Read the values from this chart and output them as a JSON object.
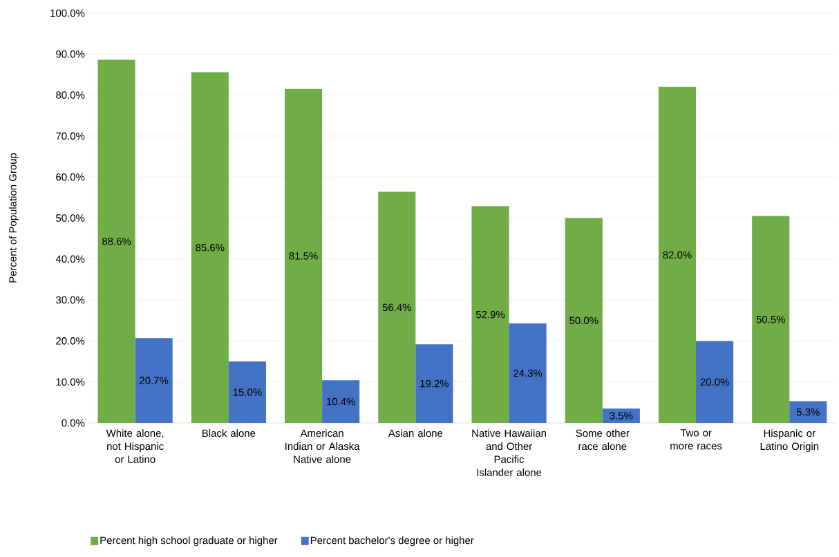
{
  "chart_data": {
    "type": "bar",
    "ylabel": "Percent of Population Group",
    "categories": [
      "White alone, not Hispanic or Latino",
      "Black alone",
      "American Indian or Alaska Native alone",
      "Asian alone",
      "Native Hawaiian and Other Pacific Islander alone",
      "Some other race alone",
      "Two or more races",
      "Hispanic or Latino Origin"
    ],
    "series": [
      {
        "name": "Percent high school graduate or higher",
        "color": "#70ad47",
        "values": [
          88.6,
          85.6,
          81.5,
          56.4,
          52.9,
          50.0,
          82.0,
          50.5
        ],
        "value_labels": [
          "88.6%",
          "85.6%",
          "81.5%",
          "56.4%",
          "52.9%",
          "50.0%",
          "82.0%",
          "50.5%"
        ]
      },
      {
        "name": "Percent bachelor's degree or higher",
        "color": "#4472c4",
        "values": [
          20.7,
          15.0,
          10.4,
          19.2,
          24.3,
          3.5,
          20.0,
          5.3
        ],
        "value_labels": [
          "20.7%",
          "15.0%",
          "10.4%",
          "19.2%",
          "24.3%",
          "3.5%",
          "20.0%",
          "5.3%"
        ]
      }
    ],
    "ylim": [
      0,
      100
    ],
    "yticks": [
      {
        "value": 0,
        "label": "0.0%"
      },
      {
        "value": 10,
        "label": "10.0%"
      },
      {
        "value": 20,
        "label": "20.0%"
      },
      {
        "value": 30,
        "label": "30.0%"
      },
      {
        "value": 40,
        "label": "40.0%"
      },
      {
        "value": 50,
        "label": "50.0%"
      },
      {
        "value": 60,
        "label": "60.0%"
      },
      {
        "value": 70,
        "label": "70.0%"
      },
      {
        "value": 80,
        "label": "80.0%"
      },
      {
        "value": 90,
        "label": "90.0%"
      },
      {
        "value": 100,
        "label": "100.0%"
      }
    ],
    "grid": "y",
    "legend": "bottom"
  }
}
